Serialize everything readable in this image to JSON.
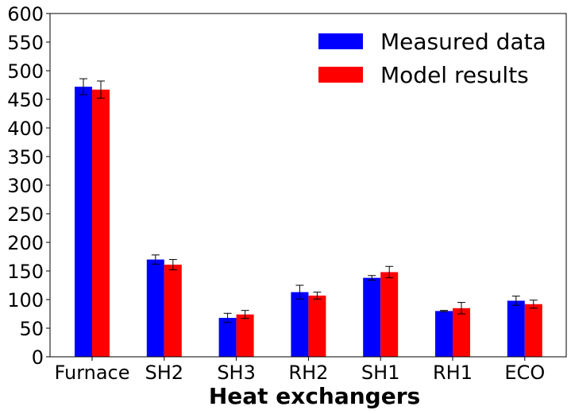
{
  "chart_data": {
    "type": "bar",
    "title": "",
    "xlabel": "Heat exchangers",
    "ylabel": "",
    "categories": [
      "Furnace",
      "SH2",
      "SH3",
      "RH2",
      "SH1",
      "RH1",
      "ECO"
    ],
    "series": [
      {
        "name": "Measured data",
        "color": "#0000ff",
        "values": [
          472,
          170,
          68,
          113,
          138,
          80,
          98
        ],
        "errors": [
          14,
          8,
          8,
          12,
          4,
          1,
          8
        ]
      },
      {
        "name": "Model results",
        "color": "#ff0000",
        "values": [
          467,
          161,
          74,
          107,
          148,
          85,
          92
        ],
        "errors": [
          15,
          9,
          7,
          6,
          10,
          10,
          7
        ]
      }
    ],
    "ylim": [
      0,
      600
    ],
    "yticks": [
      0,
      50,
      100,
      150,
      200,
      250,
      300,
      350,
      400,
      450,
      500,
      550,
      600
    ],
    "grid": false,
    "legend_position": "top-right"
  }
}
